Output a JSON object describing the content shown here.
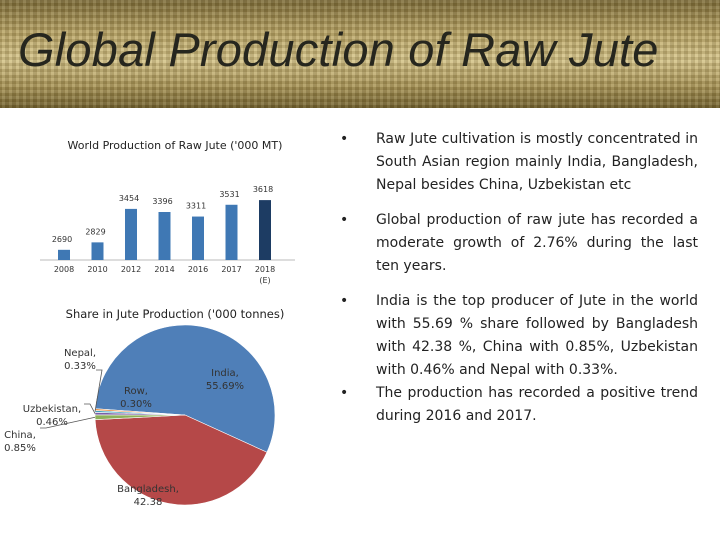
{
  "slide": {
    "title": "Global Production of  Raw Jute"
  },
  "chart_data": [
    {
      "type": "bar",
      "title": "World Production of Raw Jute ('000 MT)",
      "categories": [
        "2008",
        "2010",
        "2012",
        "2014",
        "2016",
        "2017",
        "2018 (E)"
      ],
      "values": [
        2690,
        2829,
        3454,
        3396,
        3311,
        3531,
        3618
      ],
      "ylim": [
        2500,
        3900
      ],
      "grid": false,
      "legend": "none",
      "colors": {
        "bar": "#3f78b4",
        "last_bar": "#1d3c63"
      }
    },
    {
      "type": "pie",
      "title": "Share in Jute Production ('000 tonnes)",
      "slices": [
        {
          "label": "India,",
          "value_label": "55.69%",
          "value": 55.69,
          "color": "#4f7fb8"
        },
        {
          "label": "Bangladesh,",
          "value_label": "42.38",
          "value": 42.38,
          "color": "#b54848"
        },
        {
          "label": "China,",
          "value_label": "0.85%",
          "value": 0.85,
          "color": "#8db05a"
        },
        {
          "label": "Uzbekistan,",
          "value_label": "0.46%",
          "value": 0.46,
          "color": "#7a5fa6"
        },
        {
          "label": "Nepal,",
          "value_label": "0.33%",
          "value": 0.33,
          "color": "#3fa3bd"
        },
        {
          "label": "Row,",
          "value_label": "0.30%",
          "value": 0.3,
          "color": "#e8893a"
        }
      ]
    }
  ],
  "bullets": [
    {
      "marker": "•",
      "text": "Raw Jute cultivation is mostly concentrated in South Asian region mainly India, Bangladesh, Nepal besides China, Uzbekistan etc"
    },
    {
      "marker": "•",
      "text": "Global production of raw jute has recorded a moderate growth of 2.76% during the last ten years."
    },
    {
      "marker": "•",
      "text": "India is the top producer of Jute in the world with 55.69 % share followed by Bangladesh with 42.38 %, China with 0.85%, Uzbekistan with 0.46% and Nepal with 0.33%."
    },
    {
      "marker": "•",
      "text": "The production has recorded a positive trend during 2016 and 2017."
    }
  ]
}
